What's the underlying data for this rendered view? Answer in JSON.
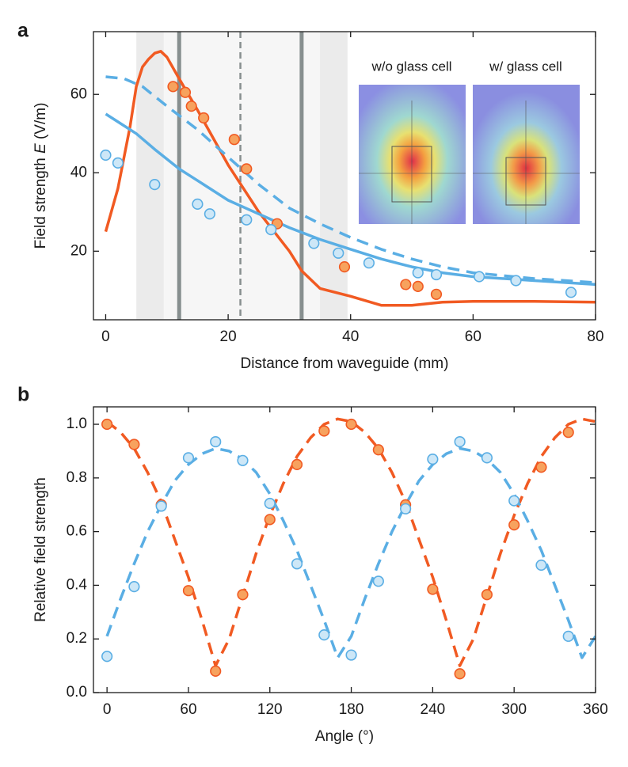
{
  "chart_data": [
    {
      "type": "line",
      "panel": "a",
      "xlabel": "Distance from waveguide (mm)",
      "ylabel": [
        "Field strength ",
        "E",
        " (V/m)"
      ],
      "xlim": [
        -2,
        80
      ],
      "ylim": [
        2.5,
        76
      ],
      "xticks": [
        0,
        20,
        40,
        60,
        80
      ],
      "yticks": [
        20,
        40,
        60
      ],
      "bands": [
        {
          "x": [
            5,
            9.5
          ],
          "color": "#ebebeb"
        },
        {
          "x": [
            9.5,
            35
          ],
          "color": "#f6f6f6"
        },
        {
          "x": [
            35,
            39.5
          ],
          "color": "#ebebeb"
        }
      ],
      "vlines": [
        {
          "x": 12,
          "color": "#878f8f",
          "dash": false
        },
        {
          "x": 32,
          "color": "#878f8f",
          "dash": false
        },
        {
          "x": 22,
          "color": "#878f8f",
          "dash": true
        }
      ],
      "annotations": [
        "w/o glass cell",
        "w/ glass cell"
      ],
      "series": [
        {
          "kind": "line",
          "dash": false,
          "color": "#f15a22",
          "x": [
            0,
            2,
            4,
            5,
            6,
            7,
            8,
            9,
            10,
            12,
            15,
            20,
            25,
            30,
            32,
            35,
            40,
            45,
            50,
            55,
            60,
            70,
            80
          ],
          "values": [
            25,
            36,
            52,
            62,
            67,
            69,
            70.5,
            71,
            69.5,
            64,
            56,
            42,
            30,
            20,
            15,
            10.5,
            8.5,
            6.2,
            6.2,
            7,
            7.2,
            7.2,
            7
          ]
        },
        {
          "kind": "line",
          "dash": false,
          "color": "#5aaee4",
          "x": [
            0,
            2,
            5,
            8,
            12,
            16,
            20,
            25,
            30,
            35,
            40,
            45,
            50,
            55,
            60,
            70,
            80
          ],
          "values": [
            55,
            53,
            50,
            46,
            41,
            37,
            33,
            29.5,
            26,
            23,
            20.5,
            18,
            16,
            14.5,
            13.5,
            12.5,
            11.5
          ]
        },
        {
          "kind": "line",
          "dash": true,
          "color": "#5aaee4",
          "x": [
            0,
            3,
            6,
            10,
            15,
            20,
            25,
            30,
            35,
            40,
            45,
            50,
            55,
            60,
            70,
            80
          ],
          "values": [
            64.5,
            64,
            62,
            57,
            51,
            44,
            37,
            31,
            27,
            23.5,
            20.5,
            18,
            16,
            14.5,
            13,
            12
          ]
        },
        {
          "kind": "scatter",
          "color": "#f15a22",
          "fill": "#f7a25e",
          "x": [
            11,
            13,
            14,
            16,
            21,
            23,
            28,
            39,
            49,
            51,
            54
          ],
          "values": [
            62,
            60.5,
            57,
            54,
            48.5,
            41,
            27,
            16,
            11.5,
            11,
            9
          ]
        },
        {
          "kind": "scatter",
          "color": "#5aaee4",
          "fill": "#cde7f7",
          "x": [
            0,
            2,
            8,
            15,
            17,
            23,
            27,
            34,
            38,
            43,
            51,
            54,
            61,
            67,
            76
          ],
          "values": [
            44.5,
            42.5,
            37,
            32,
            29.5,
            28,
            25.5,
            22,
            19.5,
            17,
            14.5,
            14,
            13.5,
            12.5,
            9.5
          ]
        }
      ]
    },
    {
      "type": "line",
      "panel": "b",
      "xlabel": "Angle (°)",
      "ylabel": [
        "Relative field strength"
      ],
      "xlim": [
        -10,
        360
      ],
      "ylim": [
        0,
        1.065
      ],
      "xticks": [
        0,
        60,
        120,
        180,
        240,
        300,
        360
      ],
      "yticks": [
        {
          "value": 0,
          "label": "0.0"
        },
        0.2,
        0.4,
        0.6,
        0.8,
        {
          "value": 1,
          "label": "1.0"
        }
      ],
      "series": [
        {
          "kind": "line",
          "dash": true,
          "color": "#f15a22",
          "x": [
            0,
            10,
            20,
            30,
            40,
            50,
            60,
            70,
            80,
            90,
            100,
            110,
            120,
            130,
            140,
            150,
            160,
            170,
            180,
            190,
            200,
            210,
            220,
            230,
            240,
            250,
            260,
            270,
            280,
            290,
            300,
            310,
            320,
            330,
            340,
            350,
            360
          ],
          "values": [
            1.01,
            0.97,
            0.91,
            0.82,
            0.71,
            0.57,
            0.43,
            0.27,
            0.1,
            0.2,
            0.36,
            0.52,
            0.66,
            0.78,
            0.88,
            0.95,
            1.0,
            1.02,
            1.01,
            0.97,
            0.91,
            0.82,
            0.71,
            0.57,
            0.43,
            0.27,
            0.1,
            0.2,
            0.36,
            0.52,
            0.66,
            0.78,
            0.88,
            0.95,
            1.0,
            1.02,
            1.01
          ]
        },
        {
          "kind": "line",
          "dash": true,
          "color": "#5aaee4",
          "x": [
            0,
            10,
            20,
            30,
            40,
            50,
            60,
            70,
            80,
            90,
            100,
            110,
            120,
            130,
            140,
            150,
            160,
            170,
            180,
            190,
            200,
            210,
            220,
            230,
            240,
            250,
            260,
            270,
            280,
            290,
            300,
            310,
            320,
            330,
            340,
            350,
            360
          ],
          "values": [
            0.21,
            0.35,
            0.48,
            0.6,
            0.7,
            0.79,
            0.85,
            0.89,
            0.91,
            0.9,
            0.87,
            0.82,
            0.74,
            0.64,
            0.53,
            0.4,
            0.27,
            0.13,
            0.21,
            0.35,
            0.48,
            0.6,
            0.7,
            0.79,
            0.85,
            0.89,
            0.91,
            0.9,
            0.87,
            0.82,
            0.74,
            0.64,
            0.53,
            0.4,
            0.27,
            0.13,
            0.21
          ]
        },
        {
          "kind": "scatter",
          "color": "#f15a22",
          "fill": "#f7a25e",
          "x": [
            0,
            20,
            40,
            60,
            80,
            100,
            120,
            140,
            160,
            180,
            200,
            220,
            240,
            260,
            280,
            300,
            320,
            340
          ],
          "values": [
            1.0,
            0.925,
            0.7,
            0.38,
            0.08,
            0.365,
            0.645,
            0.85,
            0.975,
            1.0,
            0.905,
            0.7,
            0.385,
            0.07,
            0.365,
            0.625,
            0.84,
            0.97
          ]
        },
        {
          "kind": "scatter",
          "color": "#5aaee4",
          "fill": "#cde7f7",
          "x": [
            0,
            20,
            40,
            60,
            80,
            100,
            120,
            140,
            160,
            180,
            200,
            220,
            240,
            260,
            280,
            300,
            320,
            340
          ],
          "values": [
            0.135,
            0.395,
            0.695,
            0.875,
            0.935,
            0.865,
            0.705,
            0.48,
            0.215,
            0.14,
            0.415,
            0.685,
            0.87,
            0.935,
            0.875,
            0.715,
            0.475,
            0.21
          ]
        }
      ]
    }
  ]
}
